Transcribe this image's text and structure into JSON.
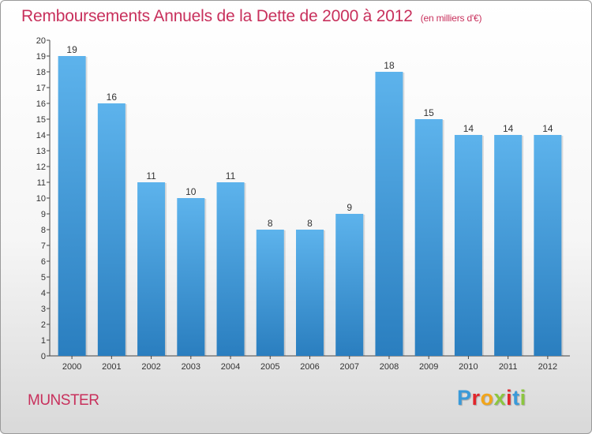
{
  "title": "Remboursements Annuels de la Dette de 2000 à 2012",
  "unit": "(en milliers d'€)",
  "subject": "MUNSTER",
  "logo": {
    "letters": [
      "P",
      "r",
      "o",
      "x",
      "i",
      "t",
      "i"
    ],
    "colors": [
      "#3a9ad9",
      "#e2262c",
      "#f2a51a",
      "#8cc63f",
      "#e2262c",
      "#3a9ad9",
      "#8cc63f"
    ]
  },
  "colors": {
    "bar_top": "#5db3ec",
    "bar_bottom": "#2a7ebf",
    "title": "#c8305c"
  },
  "chart_data": {
    "type": "bar",
    "categories": [
      "2000",
      "2001",
      "2002",
      "2003",
      "2004",
      "2005",
      "2006",
      "2007",
      "2008",
      "2009",
      "2010",
      "2011",
      "2012"
    ],
    "values": [
      19,
      16,
      11,
      10,
      11,
      8,
      8,
      9,
      18,
      15,
      14,
      14,
      14
    ],
    "ylim": [
      0,
      20
    ],
    "yticks": [
      "0",
      "1",
      "2",
      "3",
      "4",
      "5",
      "6",
      "7",
      "8",
      "9",
      "10",
      "11",
      "12",
      "13",
      "14",
      "15",
      "16",
      "17",
      "18",
      "19",
      "20"
    ],
    "grid": false,
    "legend": "none"
  }
}
